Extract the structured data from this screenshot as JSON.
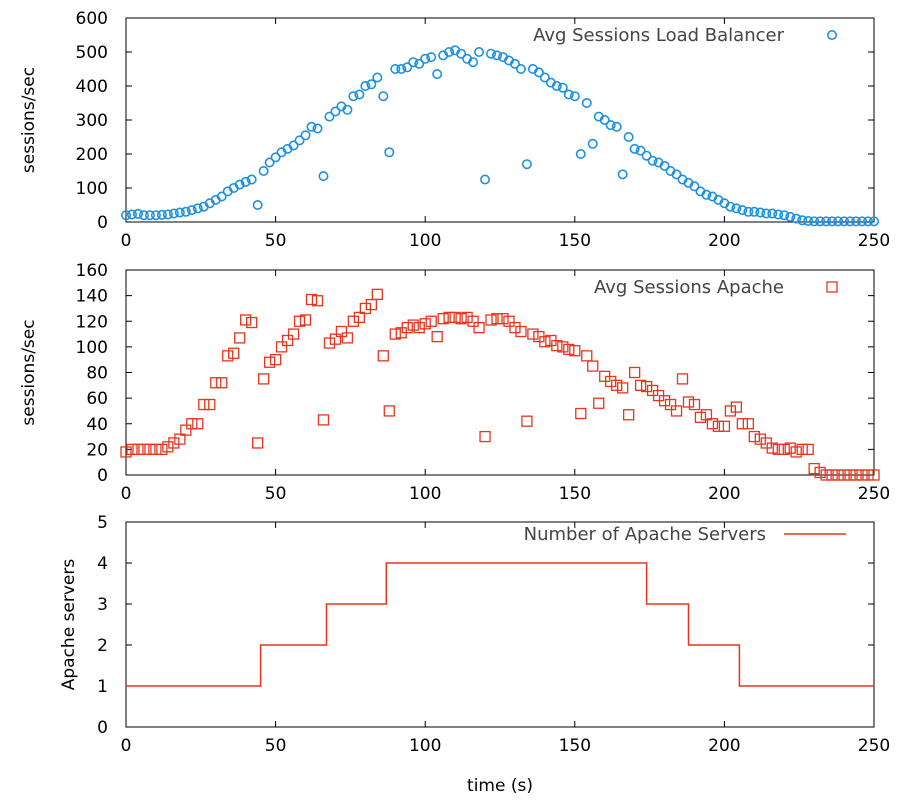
{
  "chart_data": [
    {
      "type": "scatter",
      "marker": "circle",
      "color": "#1E90E0",
      "xlabel": "",
      "ylabel": "sessions/sec",
      "xlim": [
        0,
        250
      ],
      "ylim": [
        0,
        600
      ],
      "xticks": [
        0,
        50,
        100,
        150,
        200,
        250
      ],
      "yticks": [
        0,
        100,
        200,
        300,
        400,
        500,
        600
      ],
      "legend": "top-right",
      "series": [
        {
          "name": "Avg Sessions Load Balancer",
          "x": [
            0,
            2,
            4,
            6,
            8,
            10,
            12,
            14,
            16,
            18,
            20,
            22,
            24,
            26,
            28,
            30,
            32,
            34,
            36,
            38,
            40,
            42,
            44,
            46,
            48,
            50,
            52,
            54,
            56,
            58,
            60,
            62,
            64,
            66,
            68,
            70,
            72,
            74,
            76,
            78,
            80,
            82,
            84,
            86,
            88,
            90,
            92,
            94,
            96,
            98,
            100,
            102,
            104,
            106,
            108,
            110,
            112,
            114,
            116,
            118,
            120,
            122,
            124,
            126,
            128,
            130,
            132,
            134,
            136,
            138,
            140,
            142,
            144,
            146,
            148,
            150,
            152,
            154,
            156,
            158,
            160,
            162,
            164,
            166,
            168,
            170,
            172,
            174,
            176,
            178,
            180,
            182,
            184,
            186,
            188,
            190,
            192,
            194,
            196,
            198,
            200,
            202,
            204,
            206,
            208,
            210,
            212,
            214,
            216,
            218,
            220,
            222,
            224,
            226,
            228,
            230,
            232,
            234,
            236,
            238,
            240,
            242,
            244,
            246,
            248,
            250
          ],
          "y": [
            20,
            22,
            24,
            20,
            20,
            20,
            21,
            22,
            25,
            28,
            30,
            35,
            40,
            45,
            55,
            65,
            75,
            90,
            100,
            110,
            118,
            125,
            50,
            150,
            175,
            190,
            205,
            215,
            225,
            240,
            255,
            280,
            275,
            135,
            310,
            325,
            340,
            330,
            370,
            375,
            400,
            405,
            425,
            370,
            205,
            450,
            450,
            455,
            470,
            465,
            480,
            485,
            435,
            490,
            500,
            505,
            495,
            480,
            470,
            500,
            125,
            495,
            490,
            485,
            475,
            465,
            450,
            170,
            450,
            440,
            425,
            410,
            400,
            395,
            375,
            370,
            200,
            350,
            230,
            310,
            300,
            285,
            280,
            140,
            250,
            215,
            210,
            195,
            180,
            175,
            165,
            150,
            140,
            125,
            115,
            105,
            90,
            80,
            75,
            65,
            55,
            45,
            40,
            35,
            30,
            30,
            28,
            25,
            25,
            22,
            20,
            15,
            10,
            5,
            3,
            2,
            2,
            2,
            2,
            2,
            2,
            2,
            2,
            2,
            2,
            2
          ]
        }
      ]
    },
    {
      "type": "scatter",
      "marker": "square",
      "color": "#E8341C",
      "xlabel": "",
      "ylabel": "sessions/sec",
      "xlim": [
        0,
        250
      ],
      "ylim": [
        0,
        160
      ],
      "xticks": [
        0,
        50,
        100,
        150,
        200,
        250
      ],
      "yticks": [
        0,
        20,
        40,
        60,
        80,
        100,
        120,
        140,
        160
      ],
      "legend": "top-right",
      "series": [
        {
          "name": "Avg Sessions Apache",
          "x": [
            0,
            2,
            4,
            6,
            8,
            10,
            12,
            14,
            16,
            18,
            20,
            22,
            24,
            26,
            28,
            30,
            32,
            34,
            36,
            38,
            40,
            42,
            44,
            46,
            48,
            50,
            52,
            54,
            56,
            58,
            60,
            62,
            64,
            66,
            68,
            70,
            72,
            74,
            76,
            78,
            80,
            82,
            84,
            86,
            88,
            90,
            92,
            94,
            96,
            98,
            100,
            102,
            104,
            106,
            108,
            110,
            112,
            114,
            116,
            118,
            120,
            122,
            124,
            126,
            128,
            130,
            132,
            134,
            136,
            138,
            140,
            142,
            144,
            146,
            148,
            150,
            152,
            154,
            156,
            158,
            160,
            162,
            164,
            166,
            168,
            170,
            172,
            174,
            176,
            178,
            180,
            182,
            184,
            186,
            188,
            190,
            192,
            194,
            196,
            198,
            200,
            202,
            204,
            206,
            208,
            210,
            212,
            214,
            216,
            218,
            220,
            222,
            224,
            226,
            228,
            230,
            232,
            234,
            236,
            238,
            240,
            242,
            244,
            246,
            248,
            250
          ],
          "y": [
            18,
            20,
            20,
            20,
            20,
            20,
            20,
            22,
            25,
            28,
            35,
            40,
            40,
            55,
            55,
            72,
            72,
            93,
            95,
            107,
            121,
            119,
            25,
            75,
            88,
            90,
            100,
            105,
            110,
            120,
            121,
            137,
            136,
            43,
            103,
            106,
            112,
            107,
            120,
            123,
            130,
            133,
            141,
            93,
            50,
            110,
            111,
            115,
            117,
            115,
            118,
            120,
            108,
            122,
            123,
            123,
            122,
            123,
            120,
            115,
            30,
            121,
            122,
            122,
            120,
            115,
            112,
            42,
            110,
            108,
            104,
            105,
            101,
            100,
            98,
            97,
            48,
            93,
            85,
            56,
            77,
            73,
            70,
            68,
            47,
            80,
            70,
            69,
            66,
            62,
            58,
            55,
            50,
            75,
            57,
            55,
            45,
            47,
            40,
            38,
            38,
            50,
            53,
            40,
            40,
            30,
            28,
            25,
            21,
            20,
            20,
            21,
            18,
            20,
            20,
            5,
            2,
            0,
            0,
            0,
            0,
            0,
            0,
            0,
            0,
            0
          ]
        }
      ]
    },
    {
      "type": "line",
      "step": true,
      "color": "#E8341C",
      "xlabel": "time (s)",
      "ylabel": "Apache servers",
      "xlim": [
        0,
        250
      ],
      "ylim": [
        0,
        5
      ],
      "xticks": [
        0,
        50,
        100,
        150,
        200,
        250
      ],
      "yticks": [
        0,
        1,
        2,
        3,
        4,
        5
      ],
      "legend": "top-right",
      "series": [
        {
          "name": "Number of Apache Servers",
          "x": [
            0,
            45,
            45,
            67,
            67,
            87,
            87,
            174,
            174,
            188,
            188,
            205,
            205,
            250
          ],
          "y": [
            1,
            1,
            2,
            2,
            3,
            3,
            4,
            4,
            3,
            3,
            2,
            2,
            1,
            1
          ]
        }
      ]
    }
  ]
}
